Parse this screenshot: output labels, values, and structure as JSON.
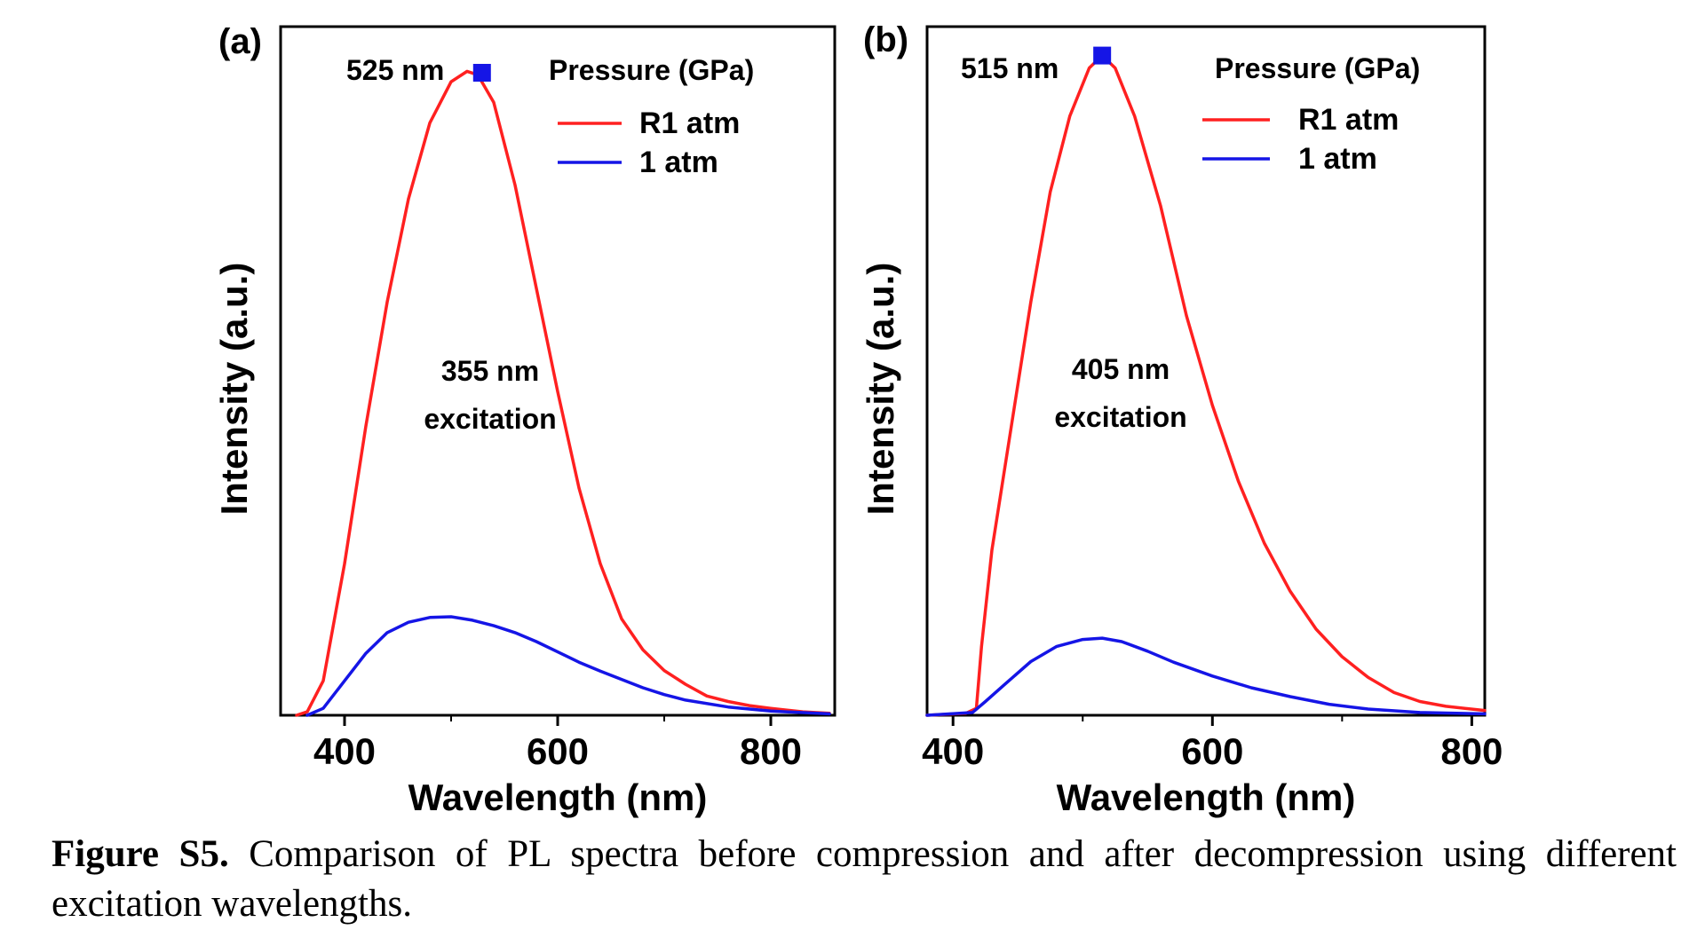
{
  "chart_data": [
    {
      "panel": "(a)",
      "type": "line",
      "xlabel": "Wavelength (nm)",
      "ylabel": "Intensity (a.u.)",
      "xlim": [
        340,
        860
      ],
      "ylim": [
        0,
        1.0
      ],
      "xticks": [
        400,
        600,
        800
      ],
      "yticks": [],
      "legend_title": "Pressure (GPa)",
      "legend_position": "top-right",
      "peak_label": "525 nm",
      "peak_marker": {
        "x": 529,
        "y": 0.933
      },
      "annotation": [
        "355 nm",
        "excitation"
      ],
      "series": [
        {
          "name": "R1 atm",
          "color": "#ff2020",
          "x": [
            355,
            365,
            380,
            400,
            420,
            440,
            460,
            480,
            500,
            515,
            525,
            540,
            560,
            580,
            600,
            620,
            640,
            660,
            680,
            700,
            720,
            740,
            760,
            780,
            800,
            830,
            855
          ],
          "y": [
            0.0,
            0.005,
            0.05,
            0.22,
            0.42,
            0.6,
            0.75,
            0.86,
            0.92,
            0.935,
            0.93,
            0.89,
            0.77,
            0.62,
            0.47,
            0.33,
            0.22,
            0.14,
            0.095,
            0.065,
            0.045,
            0.028,
            0.02,
            0.014,
            0.01,
            0.005,
            0.003
          ]
        },
        {
          "name": "1 atm",
          "color": "#1515e6",
          "x": [
            365,
            380,
            400,
            420,
            440,
            460,
            480,
            500,
            520,
            540,
            560,
            580,
            600,
            620,
            640,
            660,
            680,
            700,
            720,
            760,
            800,
            855
          ],
          "y": [
            0.0,
            0.01,
            0.05,
            0.09,
            0.12,
            0.135,
            0.142,
            0.143,
            0.138,
            0.13,
            0.12,
            0.107,
            0.092,
            0.077,
            0.064,
            0.052,
            0.04,
            0.03,
            0.022,
            0.012,
            0.006,
            0.002
          ]
        }
      ]
    },
    {
      "panel": "(b)",
      "type": "line",
      "xlabel": "Wavelength (nm)",
      "ylabel": "Intensity (a.u.)",
      "xlim": [
        380,
        810
      ],
      "ylim": [
        0,
        1.0
      ],
      "xticks": [
        400,
        600,
        800
      ],
      "yticks": [],
      "legend_title": "Pressure (GPa)",
      "legend_position": "top-right",
      "peak_label": "515 nm",
      "peak_marker": {
        "x": 515,
        "y": 0.958
      },
      "annotation": [
        "405 nm",
        "excitation"
      ],
      "series": [
        {
          "name": "R1 atm",
          "color": "#ff2020",
          "x": [
            380,
            410,
            418,
            422,
            430,
            445,
            460,
            475,
            490,
            505,
            515,
            525,
            540,
            560,
            580,
            600,
            620,
            640,
            660,
            680,
            700,
            720,
            740,
            760,
            780,
            810
          ],
          "y": [
            0.0,
            0.003,
            0.01,
            0.1,
            0.24,
            0.42,
            0.6,
            0.76,
            0.87,
            0.94,
            0.958,
            0.94,
            0.87,
            0.74,
            0.58,
            0.45,
            0.34,
            0.25,
            0.18,
            0.125,
            0.085,
            0.055,
            0.033,
            0.02,
            0.013,
            0.007
          ]
        },
        {
          "name": "1 atm",
          "color": "#1515e6",
          "x": [
            380,
            415,
            425,
            440,
            460,
            480,
            500,
            515,
            530,
            550,
            570,
            600,
            630,
            660,
            690,
            720,
            760,
            810
          ],
          "y": [
            0.0,
            0.004,
            0.02,
            0.045,
            0.078,
            0.1,
            0.11,
            0.112,
            0.107,
            0.093,
            0.077,
            0.057,
            0.04,
            0.027,
            0.016,
            0.009,
            0.004,
            0.002
          ]
        }
      ]
    }
  ],
  "caption": {
    "label": "Figure S5.",
    "text": " Comparison of PL spectra before compression and after decompression using different excitation wavelengths."
  }
}
